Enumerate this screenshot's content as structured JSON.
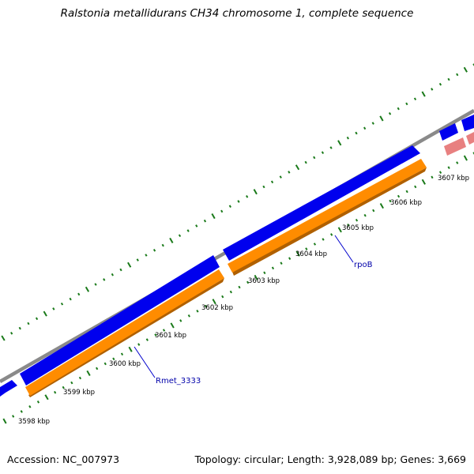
{
  "header": {
    "title": "Ralstonia metallidurans CH34 chromosome 1, complete sequence"
  },
  "footer": {
    "accession": "Accession: NC_007973",
    "topology": "Topology: circular; Length: 3,928,089 bp; Genes: 3,669"
  },
  "map": {
    "tick_labels": [
      "3598 kbp",
      "3599 kbp",
      "3600 kbp",
      "3601 kbp",
      "3602 kbp",
      "3603 kbp",
      "3604 kbp",
      "3605 kbp",
      "3606 kbp",
      "3607 kbp"
    ],
    "gene_labels": [
      "Rmet_3333",
      "rpoB"
    ],
    "colors": {
      "backbone": "#8a8a8a",
      "forward_cds": "#0000ee",
      "reverse_cds": "#ff8c00",
      "reverse_cds_shadow": "#b06000",
      "rna_feature": "#e88080",
      "ticks": "#1a7a1a",
      "gene_label": "#0000aa"
    }
  }
}
